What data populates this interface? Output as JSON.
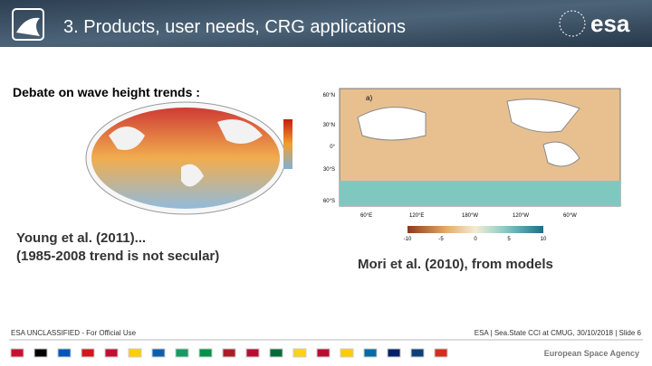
{
  "header": {
    "title": "3. Products, user needs, CRG applications",
    "logo": "esa"
  },
  "body": {
    "heading": "Debate on wave height trends :",
    "left_caption": [
      "Young et al. (2011)...",
      "(1985-2008 trend is not secular)"
    ],
    "right_caption": "Mori et al. (2010), from models",
    "right_figure": {
      "panel": "a)",
      "lat_labels": [
        "60°N",
        "30°N",
        "0°",
        "30°S",
        "60°S"
      ],
      "lon_labels": [
        "60°E",
        "120°E",
        "180°W",
        "120°W",
        "60°W"
      ],
      "colorbar_labels": [
        "-10",
        "-5",
        "0",
        "5",
        "10"
      ]
    }
  },
  "footer": {
    "classification": "ESA UNCLASSIFIED - For Official Use",
    "info": "ESA | Sea.State CCI at CMUG, 30/10/2018 | Slide 6",
    "agency": "European Space Agency"
  }
}
